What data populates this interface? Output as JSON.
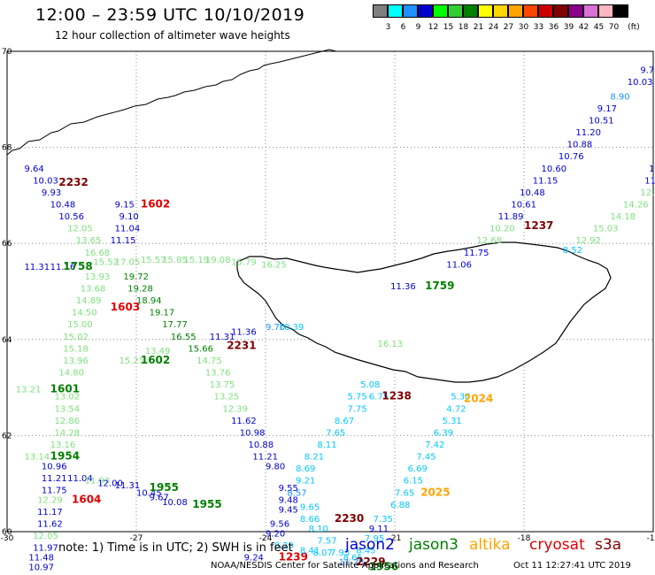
{
  "header": {
    "title": "12:00 – 23:59 UTC 10/10/2019",
    "subtitle": "12 hour collection of altimeter wave heights"
  },
  "colorbar": {
    "unit": "(ft)",
    "bins": [
      {
        "label": "3",
        "color": "#7f7f7f"
      },
      {
        "label": "6",
        "color": "#00ffff"
      },
      {
        "label": "9",
        "color": "#1e90ff"
      },
      {
        "label": "12",
        "color": "#0000cd"
      },
      {
        "label": "15",
        "color": "#00ff00"
      },
      {
        "label": "18",
        "color": "#32cd32"
      },
      {
        "label": "21",
        "color": "#008000"
      },
      {
        "label": "24",
        "color": "#ffff00"
      },
      {
        "label": "27",
        "color": "#ffd700"
      },
      {
        "label": "30",
        "color": "#ffa500"
      },
      {
        "label": "33",
        "color": "#ff4500"
      },
      {
        "label": "36",
        "color": "#cc0000"
      },
      {
        "label": "39",
        "color": "#800000"
      },
      {
        "label": "42",
        "color": "#8b008b"
      },
      {
        "label": "45",
        "color": "#da70d6"
      },
      {
        "label": "70",
        "color": "#ffb6c1"
      },
      {
        "label": "",
        "color": "#000000"
      }
    ]
  },
  "axes": {
    "lat_labels": [
      "70",
      "68",
      "66",
      "64",
      "62",
      "60"
    ],
    "lon_labels": [
      "-30",
      "-27",
      "-24",
      "-21",
      "-18",
      "-15"
    ]
  },
  "colors": {
    "dark_blue": "#0000cd",
    "blue": "#1e90ff",
    "cyan": "#00c8ff",
    "light_green": "#7fe07f",
    "green": "#008000",
    "dark_red": "#800000",
    "red": "#e00000",
    "orange": "#ffa500"
  },
  "labels": [
    {
      "t": "9.7",
      "lat": 69.55,
      "lon": -15.3,
      "c": "dark_blue"
    },
    {
      "t": "10.03",
      "lat": 69.3,
      "lon": -15.6,
      "c": "dark_blue"
    },
    {
      "t": "8.90",
      "lat": 69.0,
      "lon": -16.0,
      "c": "blue"
    },
    {
      "t": "9.17",
      "lat": 68.75,
      "lon": -16.3,
      "c": "dark_blue"
    },
    {
      "t": "10.51",
      "lat": 68.5,
      "lon": -16.5,
      "c": "dark_blue"
    },
    {
      "t": "11.20",
      "lat": 68.25,
      "lon": -16.8,
      "c": "dark_blue"
    },
    {
      "t": "10.88",
      "lat": 68.0,
      "lon": -17.0,
      "c": "dark_blue"
    },
    {
      "t": "10.76",
      "lat": 67.75,
      "lon": -17.2,
      "c": "dark_blue"
    },
    {
      "t": "10.60",
      "lat": 67.5,
      "lon": -17.6,
      "c": "dark_blue"
    },
    {
      "t": "11.15",
      "lat": 67.25,
      "lon": -17.8,
      "c": "dark_blue"
    },
    {
      "t": "10.48",
      "lat": 67.0,
      "lon": -18.1,
      "c": "dark_blue"
    },
    {
      "t": "10.61",
      "lat": 66.75,
      "lon": -18.3,
      "c": "dark_blue"
    },
    {
      "t": "11.89",
      "lat": 66.5,
      "lon": -18.6,
      "c": "dark_blue"
    },
    {
      "t": "1237",
      "lat": 66.3,
      "lon": -18.0,
      "c": "dark_red",
      "b": 1
    },
    {
      "t": "10.20",
      "lat": 66.25,
      "lon": -18.8,
      "c": "light_green"
    },
    {
      "t": "12.68",
      "lat": 66.0,
      "lon": -19.1,
      "c": "light_green"
    },
    {
      "t": "11.75",
      "lat": 65.75,
      "lon": -19.4,
      "c": "dark_blue"
    },
    {
      "t": "11.06",
      "lat": 65.5,
      "lon": -19.8,
      "c": "dark_blue"
    },
    {
      "t": "1",
      "lat": 67.5,
      "lon": -15.1,
      "c": "dark_blue"
    },
    {
      "t": "11.0",
      "lat": 67.25,
      "lon": -15.2,
      "c": "dark_blue"
    },
    {
      "t": "12.41",
      "lat": 67.0,
      "lon": -15.3,
      "c": "light_green"
    },
    {
      "t": "14.26",
      "lat": 66.75,
      "lon": -15.7,
      "c": "light_green"
    },
    {
      "t": "14.18",
      "lat": 66.5,
      "lon": -16.0,
      "c": "light_green"
    },
    {
      "t": "15.03",
      "lat": 66.25,
      "lon": -16.4,
      "c": "light_green"
    },
    {
      "t": "12.92",
      "lat": 66.0,
      "lon": -16.8,
      "c": "light_green"
    },
    {
      "t": "8.52",
      "lat": 65.8,
      "lon": -17.1,
      "c": "cyan"
    },
    {
      "t": "9.64",
      "lat": 67.5,
      "lon": -29.6,
      "c": "dark_blue"
    },
    {
      "t": "10.03",
      "lat": 67.25,
      "lon": -29.4,
      "c": "dark_blue"
    },
    {
      "t": "2232",
      "lat": 67.2,
      "lon": -28.8,
      "c": "dark_red",
      "b": 1
    },
    {
      "t": "9.93",
      "lat": 67.0,
      "lon": -29.2,
      "c": "dark_blue"
    },
    {
      "t": "10.48",
      "lat": 66.75,
      "lon": -29.0,
      "c": "dark_blue"
    },
    {
      "t": "10.56",
      "lat": 66.5,
      "lon": -28.8,
      "c": "dark_blue"
    },
    {
      "t": "12.05",
      "lat": 66.25,
      "lon": -28.6,
      "c": "light_green"
    },
    {
      "t": "13.65",
      "lat": 66.0,
      "lon": -28.4,
      "c": "light_green"
    },
    {
      "t": "16.68",
      "lat": 65.75,
      "lon": -28.2,
      "c": "light_green"
    },
    {
      "t": "15.52",
      "lat": 65.55,
      "lon": -28.0,
      "c": "light_green"
    },
    {
      "t": "11.31",
      "lat": 65.45,
      "lon": -29.6,
      "c": "dark_blue"
    },
    {
      "t": "11.16",
      "lat": 65.45,
      "lon": -29.0,
      "c": "dark_blue"
    },
    {
      "t": "1758",
      "lat": 65.45,
      "lon": -28.7,
      "c": "green",
      "b": 1
    },
    {
      "t": "13.93",
      "lat": 65.25,
      "lon": -28.2,
      "c": "light_green"
    },
    {
      "t": "13.68",
      "lat": 65.0,
      "lon": -28.3,
      "c": "light_green"
    },
    {
      "t": "14.89",
      "lat": 64.75,
      "lon": -28.4,
      "c": "light_green"
    },
    {
      "t": "14.50",
      "lat": 64.5,
      "lon": -28.5,
      "c": "light_green"
    },
    {
      "t": "15.00",
      "lat": 64.25,
      "lon": -28.6,
      "c": "light_green"
    },
    {
      "t": "15.02",
      "lat": 64.0,
      "lon": -28.7,
      "c": "light_green"
    },
    {
      "t": "15.18",
      "lat": 63.75,
      "lon": -28.7,
      "c": "light_green"
    },
    {
      "t": "13.96",
      "lat": 63.5,
      "lon": -28.7,
      "c": "light_green"
    },
    {
      "t": "14.80",
      "lat": 63.25,
      "lon": -28.8,
      "c": "light_green"
    },
    {
      "t": "13.21",
      "lat": 62.9,
      "lon": -29.8,
      "c": "light_green"
    },
    {
      "t": "1601",
      "lat": 62.9,
      "lon": -29.0,
      "c": "green",
      "b": 1
    },
    {
      "t": "13.02",
      "lat": 62.75,
      "lon": -28.9,
      "c": "light_green"
    },
    {
      "t": "13.54",
      "lat": 62.5,
      "lon": -28.9,
      "c": "light_green"
    },
    {
      "t": "12.86",
      "lat": 62.25,
      "lon": -28.9,
      "c": "light_green"
    },
    {
      "t": "14.28",
      "lat": 62.0,
      "lon": -28.9,
      "c": "light_green"
    },
    {
      "t": "13.16",
      "lat": 61.75,
      "lon": -29.0,
      "c": "light_green"
    },
    {
      "t": "13.14",
      "lat": 61.5,
      "lon": -29.6,
      "c": "light_green"
    },
    {
      "t": "1954",
      "lat": 61.5,
      "lon": -29.0,
      "c": "green",
      "b": 1
    },
    {
      "t": "10.96",
      "lat": 61.3,
      "lon": -29.2,
      "c": "dark_blue"
    },
    {
      "t": "11.21",
      "lat": 61.05,
      "lon": -29.2,
      "c": "dark_blue"
    },
    {
      "t": "11.75",
      "lat": 60.8,
      "lon": -29.2,
      "c": "dark_blue"
    },
    {
      "t": "12.29",
      "lat": 60.6,
      "lon": -29.3,
      "c": "light_green"
    },
    {
      "t": "11.17",
      "lat": 60.35,
      "lon": -29.3,
      "c": "dark_blue"
    },
    {
      "t": "11.62",
      "lat": 60.1,
      "lon": -29.3,
      "c": "dark_blue"
    },
    {
      "t": "12.05",
      "lat": 59.85,
      "lon": -29.4,
      "c": "light_green"
    },
    {
      "t": "11.97",
      "lat": 59.6,
      "lon": -29.4,
      "c": "dark_blue"
    },
    {
      "t": "11.48",
      "lat": 59.4,
      "lon": -29.5,
      "c": "dark_blue"
    },
    {
      "t": "10.97",
      "lat": 59.2,
      "lon": -29.5,
      "c": "dark_blue"
    },
    {
      "t": "1604",
      "lat": 60.6,
      "lon": -28.5,
      "c": "red",
      "b": 1
    },
    {
      "t": "11.04",
      "lat": 61.05,
      "lon": -28.6,
      "c": "dark_blue"
    },
    {
      "t": "11.93",
      "lat": 61.0,
      "lon": -28.2,
      "c": "light_green"
    },
    {
      "t": "12.00",
      "lat": 60.95,
      "lon": -27.9,
      "c": "dark_blue"
    },
    {
      "t": "11.31",
      "lat": 60.9,
      "lon": -27.5,
      "c": "dark_blue"
    },
    {
      "t": "10.45",
      "lat": 60.75,
      "lon": -27.0,
      "c": "dark_blue"
    },
    {
      "t": "1955",
      "lat": 60.85,
      "lon": -26.7,
      "c": "green",
      "b": 1
    },
    {
      "t": "9.67",
      "lat": 60.65,
      "lon": -26.7,
      "c": "dark_blue"
    },
    {
      "t": "10.08",
      "lat": 60.55,
      "lon": -26.4,
      "c": "dark_blue"
    },
    {
      "t": "1955",
      "lat": 60.5,
      "lon": -25.7,
      "c": "green",
      "b": 1
    },
    {
      "t": "9.15",
      "lat": 66.75,
      "lon": -27.5,
      "c": "dark_blue"
    },
    {
      "t": "1602",
      "lat": 66.75,
      "lon": -26.9,
      "c": "red",
      "b": 1
    },
    {
      "t": "9.10",
      "lat": 66.5,
      "lon": -27.4,
      "c": "dark_blue"
    },
    {
      "t": "11.04",
      "lat": 66.25,
      "lon": -27.5,
      "c": "dark_blue"
    },
    {
      "t": "11.15",
      "lat": 66.0,
      "lon": -27.6,
      "c": "dark_blue"
    },
    {
      "t": "17.05",
      "lat": 65.55,
      "lon": -27.5,
      "c": "light_green"
    },
    {
      "t": "15.57",
      "lat": 65.6,
      "lon": -26.9,
      "c": "light_green"
    },
    {
      "t": "15.85",
      "lat": 65.6,
      "lon": -26.4,
      "c": "light_green"
    },
    {
      "t": "15.19",
      "lat": 65.6,
      "lon": -25.9,
      "c": "light_green"
    },
    {
      "t": "19.08",
      "lat": 65.6,
      "lon": -25.4,
      "c": "light_green"
    },
    {
      "t": "15.79",
      "lat": 65.55,
      "lon": -24.8,
      "c": "light_green"
    },
    {
      "t": "16.25",
      "lat": 65.5,
      "lon": -24.1,
      "c": "light_green"
    },
    {
      "t": "19.72",
      "lat": 65.25,
      "lon": -27.3,
      "c": "green"
    },
    {
      "t": "19.28",
      "lat": 65.0,
      "lon": -27.2,
      "c": "green"
    },
    {
      "t": "18.94",
      "lat": 64.75,
      "lon": -27.0,
      "c": "green"
    },
    {
      "t": "1603",
      "lat": 64.6,
      "lon": -27.6,
      "c": "red",
      "b": 1
    },
    {
      "t": "19.17",
      "lat": 64.5,
      "lon": -26.7,
      "c": "green"
    },
    {
      "t": "17.77",
      "lat": 64.25,
      "lon": -26.4,
      "c": "green"
    },
    {
      "t": "16.55",
      "lat": 64.0,
      "lon": -26.2,
      "c": "green"
    },
    {
      "t": "15.66",
      "lat": 63.75,
      "lon": -25.8,
      "c": "green"
    },
    {
      "t": "13.49",
      "lat": 63.7,
      "lon": -26.8,
      "c": "light_green"
    },
    {
      "t": "15.21",
      "lat": 63.5,
      "lon": -27.4,
      "c": "light_green"
    },
    {
      "t": "1602",
      "lat": 63.5,
      "lon": -26.9,
      "c": "green",
      "b": 1
    },
    {
      "t": "14.75",
      "lat": 63.5,
      "lon": -25.6,
      "c": "light_green"
    },
    {
      "t": "13.76",
      "lat": 63.25,
      "lon": -25.4,
      "c": "light_green"
    },
    {
      "t": "13.75",
      "lat": 63.0,
      "lon": -25.3,
      "c": "light_green"
    },
    {
      "t": "13.25",
      "lat": 62.75,
      "lon": -25.2,
      "c": "light_green"
    },
    {
      "t": "12.39",
      "lat": 62.5,
      "lon": -25.0,
      "c": "light_green"
    },
    {
      "t": "11.36",
      "lat": 64.1,
      "lon": -24.8,
      "c": "dark_blue"
    },
    {
      "t": "9.70",
      "lat": 64.2,
      "lon": -24.0,
      "c": "blue"
    },
    {
      "t": "10.39",
      "lat": 64.2,
      "lon": -23.7,
      "c": "cyan"
    },
    {
      "t": "2231",
      "lat": 63.8,
      "lon": -24.9,
      "c": "dark_red",
      "b": 1
    },
    {
      "t": "11.31",
      "lat": 64.0,
      "lon": -25.3,
      "c": "dark_blue"
    },
    {
      "t": "11.62",
      "lat": 62.25,
      "lon": -24.8,
      "c": "dark_blue"
    },
    {
      "t": "10.98",
      "lat": 62.0,
      "lon": -24.6,
      "c": "dark_blue"
    },
    {
      "t": "10.88",
      "lat": 61.75,
      "lon": -24.4,
      "c": "dark_blue"
    },
    {
      "t": "11.21",
      "lat": 61.5,
      "lon": -24.3,
      "c": "dark_blue"
    },
    {
      "t": "9.80",
      "lat": 61.3,
      "lon": -24.0,
      "c": "dark_blue"
    },
    {
      "t": "9.55",
      "lat": 60.85,
      "lon": -23.7,
      "c": "dark_blue"
    },
    {
      "t": "8.57",
      "lat": 60.75,
      "lon": -23.5,
      "c": "blue"
    },
    {
      "t": "9.48",
      "lat": 60.6,
      "lon": -23.7,
      "c": "dark_blue"
    },
    {
      "t": "9.45",
      "lat": 60.4,
      "lon": -23.7,
      "c": "dark_blue"
    },
    {
      "t": "9.56",
      "lat": 60.1,
      "lon": -23.9,
      "c": "dark_blue"
    },
    {
      "t": "9.20",
      "lat": 59.9,
      "lon": -24.0,
      "c": "dark_blue"
    },
    {
      "t": "8.29",
      "lat": 59.65,
      "lon": -23.8,
      "c": "cyan"
    },
    {
      "t": "9.24",
      "lat": 59.4,
      "lon": -24.5,
      "c": "dark_blue"
    },
    {
      "t": "1239",
      "lat": 59.4,
      "lon": -23.7,
      "c": "red",
      "b": 1
    },
    {
      "t": "8.41",
      "lat": 59.55,
      "lon": -23.2,
      "c": "cyan"
    },
    {
      "t": "8.07",
      "lat": 59.5,
      "lon": -22.9,
      "c": "cyan"
    },
    {
      "t": "7.93",
      "lat": 59.5,
      "lon": -22.5,
      "c": "cyan"
    },
    {
      "t": "9.21",
      "lat": 61.0,
      "lon": -23.3,
      "c": "cyan"
    },
    {
      "t": "9.65",
      "lat": 60.45,
      "lon": -23.2,
      "c": "cyan"
    },
    {
      "t": "8.66",
      "lat": 60.2,
      "lon": -23.2,
      "c": "cyan"
    },
    {
      "t": "8.10",
      "lat": 60.0,
      "lon": -23.0,
      "c": "cyan"
    },
    {
      "t": "7.57",
      "lat": 59.75,
      "lon": -22.8,
      "c": "cyan"
    },
    {
      "t": "2230",
      "lat": 60.2,
      "lon": -22.4,
      "c": "dark_red",
      "b": 1
    },
    {
      "t": "8.69",
      "lat": 61.25,
      "lon": -23.3,
      "c": "cyan"
    },
    {
      "t": "8.21",
      "lat": 61.5,
      "lon": -23.1,
      "c": "cyan"
    },
    {
      "t": "8.11",
      "lat": 61.75,
      "lon": -22.8,
      "c": "cyan"
    },
    {
      "t": "7.65",
      "lat": 62.0,
      "lon": -22.6,
      "c": "cyan"
    },
    {
      "t": "8.67",
      "lat": 62.25,
      "lon": -22.4,
      "c": "cyan"
    },
    {
      "t": "7.75",
      "lat": 62.5,
      "lon": -22.1,
      "c": "cyan"
    },
    {
      "t": "5.75",
      "lat": 62.75,
      "lon": -22.1,
      "c": "cyan"
    },
    {
      "t": "6.75",
      "lat": 62.75,
      "lon": -21.6,
      "c": "cyan"
    },
    {
      "t": "5.08",
      "lat": 63.0,
      "lon": -21.8,
      "c": "cyan"
    },
    {
      "t": "1238",
      "lat": 62.75,
      "lon": -21.3,
      "c": "dark_red",
      "b": 1
    },
    {
      "t": "16.13",
      "lat": 63.85,
      "lon": -21.4,
      "c": "light_green"
    },
    {
      "t": "11.36",
      "lat": 65.05,
      "lon": -21.1,
      "c": "dark_blue"
    },
    {
      "t": "1759",
      "lat": 65.05,
      "lon": -20.3,
      "c": "green",
      "b": 1
    },
    {
      "t": "5.30",
      "lat": 62.75,
      "lon": -19.7,
      "c": "cyan"
    },
    {
      "t": "2024",
      "lat": 62.7,
      "lon": -19.4,
      "c": "orange",
      "b": 1
    },
    {
      "t": "4.72",
      "lat": 62.5,
      "lon": -19.8,
      "c": "cyan"
    },
    {
      "t": "5.31",
      "lat": 62.25,
      "lon": -19.9,
      "c": "cyan"
    },
    {
      "t": "6.39",
      "lat": 62.0,
      "lon": -20.1,
      "c": "cyan"
    },
    {
      "t": "7.42",
      "lat": 61.75,
      "lon": -20.3,
      "c": "cyan"
    },
    {
      "t": "7.45",
      "lat": 61.5,
      "lon": -20.5,
      "c": "cyan"
    },
    {
      "t": "6.69",
      "lat": 61.25,
      "lon": -20.7,
      "c": "cyan"
    },
    {
      "t": "6.15",
      "lat": 61.0,
      "lon": -20.8,
      "c": "cyan"
    },
    {
      "t": "7.65",
      "lat": 60.75,
      "lon": -21.0,
      "c": "cyan"
    },
    {
      "t": "2025",
      "lat": 60.75,
      "lon": -20.4,
      "c": "orange",
      "b": 1
    },
    {
      "t": "6.88",
      "lat": 60.5,
      "lon": -21.1,
      "c": "cyan"
    },
    {
      "t": "7.35",
      "lat": 60.2,
      "lon": -21.5,
      "c": "cyan"
    },
    {
      "t": "9.11",
      "lat": 60.0,
      "lon": -21.6,
      "c": "dark_blue"
    },
    {
      "t": "7.95",
      "lat": 59.8,
      "lon": -21.7,
      "c": "cyan"
    },
    {
      "t": "8.45",
      "lat": 59.55,
      "lon": -21.9,
      "c": "cyan"
    },
    {
      "t": "8.65",
      "lat": 59.4,
      "lon": -22.2,
      "c": "cyan"
    },
    {
      "t": "11.28",
      "lat": 59.3,
      "lon": -22.3,
      "c": "blue"
    },
    {
      "t": "2229",
      "lat": 59.3,
      "lon": -21.9,
      "c": "dark_red",
      "b": 1
    },
    {
      "t": "1956",
      "lat": 59.2,
      "lon": -21.6,
      "c": "green",
      "b": 1
    }
  ],
  "footer": {
    "note": "note: 1) Time is in UTC; 2) SWH is in feet",
    "legend": [
      {
        "name": "jason2",
        "color": "#0000cd"
      },
      {
        "name": "jason3",
        "color": "#008000"
      },
      {
        "name": "altika",
        "color": "#ffa500"
      },
      {
        "name": "cryosat",
        "color": "#e00000"
      },
      {
        "name": "s3a",
        "color": "#800000"
      }
    ],
    "credit": "NOAA/NESDIS Center for Satellite Applications and Research",
    "timestamp": "Oct 11 12:27:41 UTC 2019"
  }
}
